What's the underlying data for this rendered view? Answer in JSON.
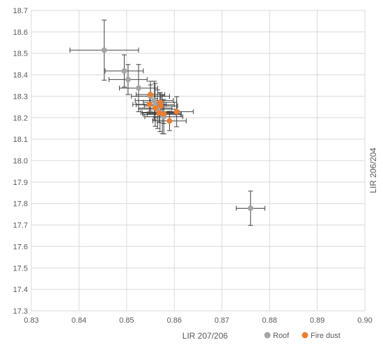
{
  "chart_data": {
    "type": "scatter",
    "xlabel": "LIR 207/206",
    "ylabel": "LIR 206/204",
    "xlim": [
      0.83,
      0.9
    ],
    "ylim": [
      17.3,
      18.7
    ],
    "x_ticks": [
      "0.83",
      "0.84",
      "0.85",
      "0.86",
      "0.87",
      "0.88",
      "0.89",
      "0.90"
    ],
    "y_ticks": [
      "17.3",
      "17.4",
      "17.5",
      "17.6",
      "17.7",
      "17.8",
      "17.9",
      "18.0",
      "18.1",
      "18.2",
      "18.3",
      "18.4",
      "18.5",
      "18.6",
      "18.7"
    ],
    "grid": true,
    "legend_position": "bottom-right",
    "series": [
      {
        "name": "Roof",
        "color": "#a5a5a5",
        "points": [
          {
            "x": 0.8453,
            "y": 18.515,
            "xerr": 0.0072,
            "yerr": 0.14
          },
          {
            "x": 0.8495,
            "y": 18.418,
            "xerr": 0.004,
            "yerr": 0.075
          },
          {
            "x": 0.8503,
            "y": 18.378,
            "xerr": 0.004,
            "yerr": 0.07
          },
          {
            "x": 0.8525,
            "y": 18.338,
            "xerr": 0.004,
            "yerr": 0.11
          },
          {
            "x": 0.855,
            "y": 18.3,
            "xerr": 0.004,
            "yerr": 0.07
          },
          {
            "x": 0.8558,
            "y": 18.28,
            "xerr": 0.004,
            "yerr": 0.09
          },
          {
            "x": 0.856,
            "y": 18.26,
            "xerr": 0.004,
            "yerr": 0.1
          },
          {
            "x": 0.8565,
            "y": 18.24,
            "xerr": 0.004,
            "yerr": 0.09
          },
          {
            "x": 0.857,
            "y": 18.225,
            "xerr": 0.004,
            "yerr": 0.09
          },
          {
            "x": 0.8575,
            "y": 18.215,
            "xerr": 0.004,
            "yerr": 0.09
          },
          {
            "x": 0.8578,
            "y": 18.205,
            "xerr": 0.004,
            "yerr": 0.08
          },
          {
            "x": 0.876,
            "y": 17.778,
            "xerr": 0.003,
            "yerr": 0.08
          }
        ]
      },
      {
        "name": "Fire dust",
        "color": "#ed7d31",
        "points": [
          {
            "x": 0.855,
            "y": 18.308,
            "xerr": 0.003,
            "yerr": 0.045
          },
          {
            "x": 0.8548,
            "y": 18.262,
            "xerr": 0.0035,
            "yerr": 0.045
          },
          {
            "x": 0.856,
            "y": 18.245,
            "xerr": 0.0035,
            "yerr": 0.045
          },
          {
            "x": 0.857,
            "y": 18.272,
            "xerr": 0.0035,
            "yerr": 0.045
          },
          {
            "x": 0.8572,
            "y": 18.255,
            "xerr": 0.0035,
            "yerr": 0.045
          },
          {
            "x": 0.8568,
            "y": 18.222,
            "xerr": 0.0035,
            "yerr": 0.045
          },
          {
            "x": 0.8578,
            "y": 18.218,
            "xerr": 0.0035,
            "yerr": 0.045
          },
          {
            "x": 0.8605,
            "y": 18.228,
            "xerr": 0.0035,
            "yerr": 0.07
          },
          {
            "x": 0.859,
            "y": 18.185,
            "xerr": 0.0035,
            "yerr": 0.045
          }
        ]
      }
    ]
  }
}
